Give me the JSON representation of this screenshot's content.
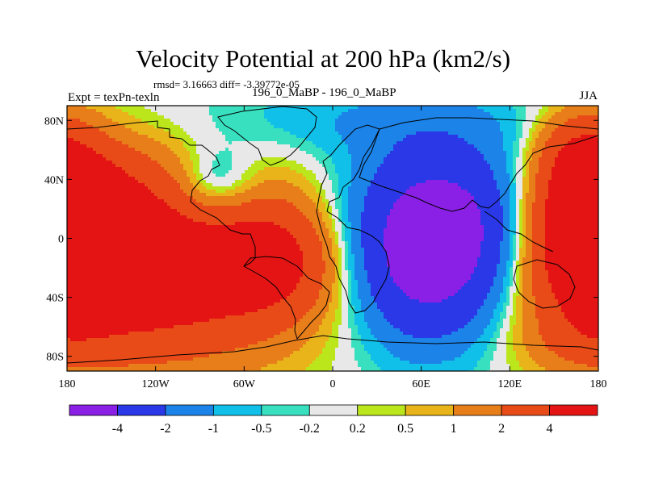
{
  "chart_data": {
    "type": "heatmap",
    "title": "Velocity Potential at 200 hPa (km2/s)",
    "stats_text": "rmsd= 3.16663 diff= -3.39772e-05",
    "left_label": "Expt = texPn-texln",
    "center_label": "196_0_MaBP - 196_0_MaBP",
    "right_label": "JJA",
    "x_axis": {
      "range": [
        -180,
        180
      ],
      "ticks": [
        -180,
        -120,
        -60,
        0,
        60,
        120,
        180
      ],
      "tick_labels": [
        "180",
        "120W",
        "60W",
        "0",
        "60E",
        "120E",
        "180"
      ]
    },
    "y_axis": {
      "range": [
        -90,
        90
      ],
      "ticks": [
        80,
        40,
        0,
        -40,
        -80
      ],
      "tick_labels": [
        "80N",
        "40N",
        "0",
        "40S",
        "80S"
      ]
    },
    "colorbar": {
      "levels": [
        "-4",
        "-2",
        "-1",
        "-0.5",
        "-0.2",
        "0.2",
        "0.5",
        "1",
        "2",
        "4"
      ],
      "colors": [
        "#8a1fe6",
        "#2a38e8",
        "#1c83e8",
        "#10c0e8",
        "#38e0c0",
        "#e8e8e8",
        "#bce61c",
        "#e8b41a",
        "#e87e1a",
        "#e84a18",
        "#e41414"
      ]
    },
    "field_centers": [
      {
        "lon": 70,
        "lat": -10,
        "value": -5.8,
        "sx": 40,
        "sy": 42
      },
      {
        "lon": 85,
        "lat": 20,
        "value": -1.6,
        "sx": 45,
        "sy": 36
      },
      {
        "lon": 20,
        "lat": 80,
        "value": -0.9,
        "sx": 85,
        "sy": 18
      },
      {
        "lon": -80,
        "lat": 35,
        "value": -2.3,
        "sx": 20,
        "sy": 18
      },
      {
        "lon": -130,
        "lat": -20,
        "value": 6.5,
        "sx": 75,
        "sy": 42
      },
      {
        "lon": -40,
        "lat": -15,
        "value": 3.0,
        "sx": 28,
        "sy": 25
      },
      {
        "lon": -160,
        "lat": 35,
        "value": 1.5,
        "sx": 40,
        "sy": 24
      },
      {
        "lon": 175,
        "lat": 15,
        "value": 6.0,
        "sx": 25,
        "sy": 38
      },
      {
        "lon": 165,
        "lat": 60,
        "value": 1.6,
        "sx": 18,
        "sy": 18
      },
      {
        "lon": 170,
        "lat": -70,
        "value": 0.9,
        "sx": 30,
        "sy": 14
      }
    ]
  }
}
